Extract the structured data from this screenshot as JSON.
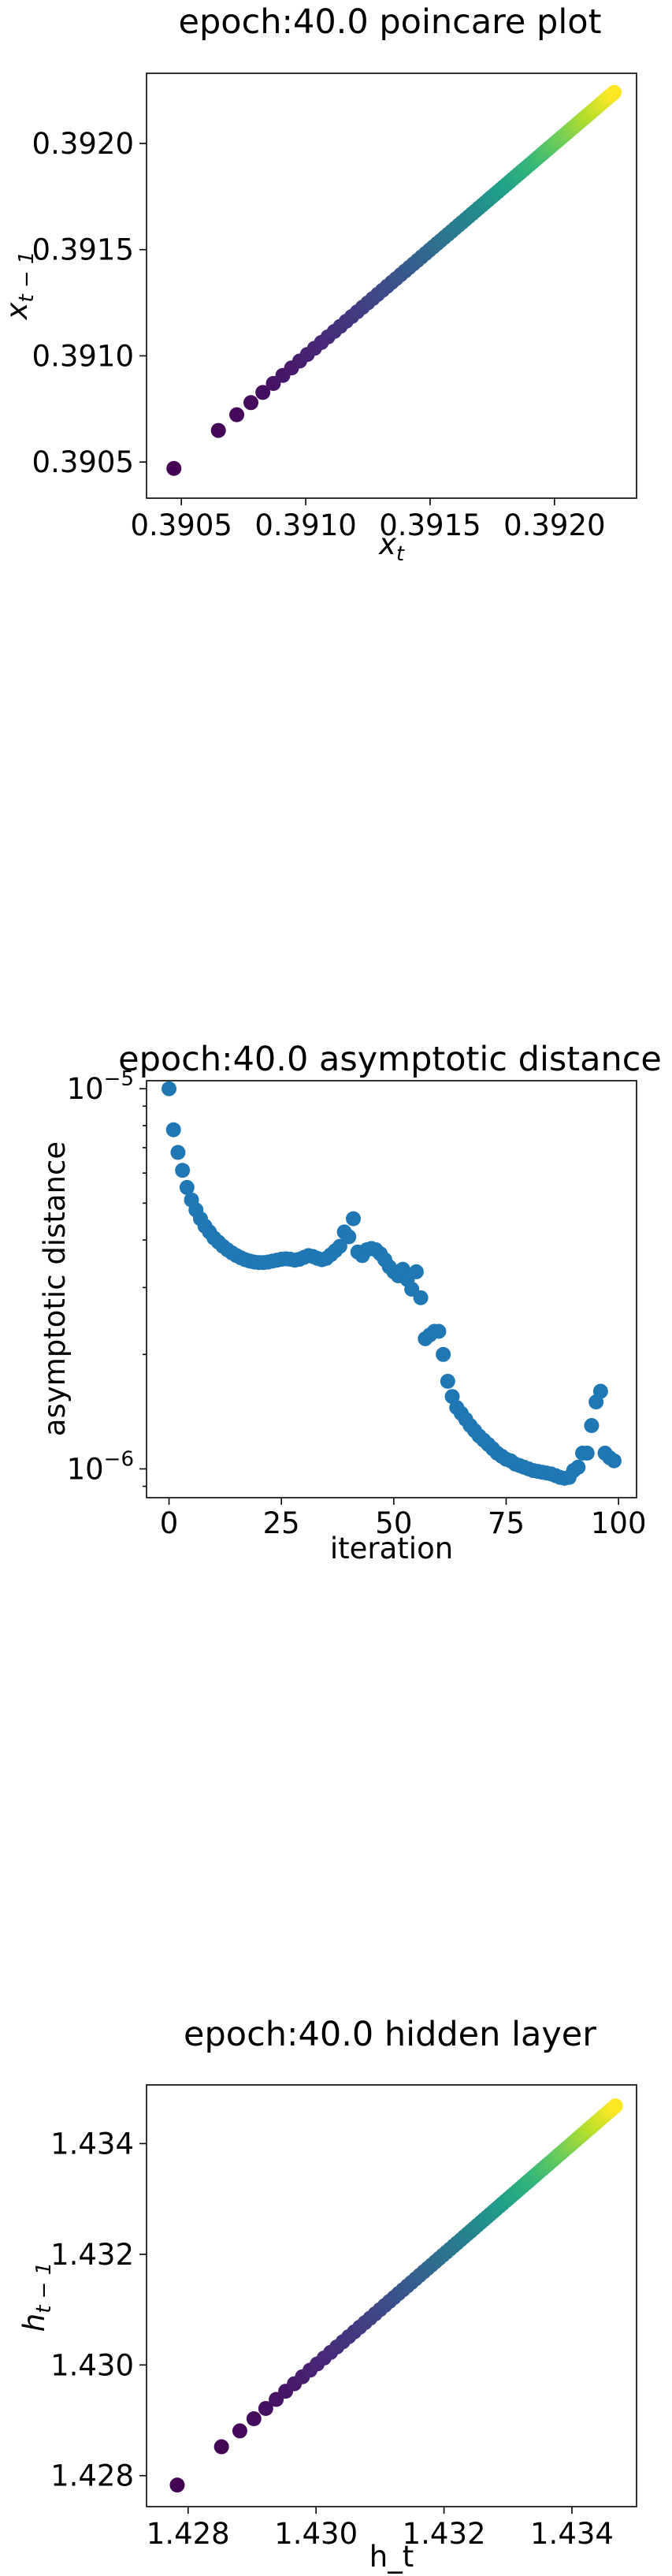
{
  "chart_data": [
    {
      "type": "scatter",
      "title": "epoch:40.0 poincare plot",
      "xlabel": "x_t",
      "ylabel": "x_{t-1}",
      "xlim": [
        0.39036,
        0.39233
      ],
      "ylim": [
        0.39033,
        0.39233
      ],
      "xticks": [
        0.3905,
        0.391,
        0.3915,
        0.392
      ],
      "xtick_labels": [
        "0.3905",
        "0.3910",
        "0.3915",
        "0.3920"
      ],
      "yticks": [
        0.3905,
        0.391,
        0.3915,
        0.392
      ],
      "ytick_labels": [
        "0.3905",
        "0.3910",
        "0.3915",
        "0.3920"
      ],
      "start": 0.39047,
      "end": 0.39224,
      "n_points": 99,
      "colormap": "viridis",
      "grid": false
    },
    {
      "type": "scatter",
      "title": "epoch:40.0 asymptotic distance",
      "xlabel": "iteration",
      "ylabel": "asymptotic distance",
      "yscale": "log",
      "xlim": [
        -5,
        104
      ],
      "ylim": [
        8.4e-07,
        1.05e-05
      ],
      "xticks": [
        0,
        25,
        50,
        75,
        100
      ],
      "xtick_labels": [
        "0",
        "25",
        "50",
        "75",
        "100"
      ],
      "yticks": [
        1e-06,
        1e-05
      ],
      "ytick_base": "10",
      "ytick_exponents": [
        "−6",
        "−5"
      ],
      "color": "#1f77b4",
      "grid": false,
      "x": [
        0,
        1,
        2,
        3,
        4,
        5,
        6,
        7,
        8,
        9,
        10,
        11,
        12,
        13,
        14,
        15,
        16,
        17,
        18,
        19,
        20,
        21,
        22,
        23,
        24,
        25,
        26,
        27,
        28,
        29,
        30,
        31,
        32,
        33,
        34,
        35,
        36,
        37,
        38,
        39,
        40,
        41,
        42,
        43,
        44,
        45,
        46,
        47,
        48,
        49,
        50,
        51,
        52,
        53,
        54,
        55,
        56,
        57,
        58,
        59,
        60,
        61,
        62,
        63,
        64,
        65,
        66,
        67,
        68,
        69,
        70,
        71,
        72,
        73,
        74,
        75,
        76,
        77,
        78,
        79,
        80,
        81,
        82,
        83,
        84,
        85,
        86,
        87,
        88,
        89,
        90,
        91,
        92,
        93,
        94,
        95,
        96,
        97,
        98,
        99
      ],
      "y": [
        1e-05,
        7.8e-06,
        6.8e-06,
        6.1e-06,
        5.5e-06,
        5.1e-06,
        4.8e-06,
        4.55e-06,
        4.35e-06,
        4.2e-06,
        4.05e-06,
        3.95e-06,
        3.85e-06,
        3.77e-06,
        3.7e-06,
        3.64e-06,
        3.59e-06,
        3.55e-06,
        3.52e-06,
        3.5e-06,
        3.49e-06,
        3.49e-06,
        3.5e-06,
        3.52e-06,
        3.54e-06,
        3.56e-06,
        3.57e-06,
        3.56e-06,
        3.54e-06,
        3.56e-06,
        3.6e-06,
        3.64e-06,
        3.62e-06,
        3.58e-06,
        3.55e-06,
        3.58e-06,
        3.66e-06,
        3.75e-06,
        3.85e-06,
        4.2e-06,
        4.08e-06,
        4.55e-06,
        3.72e-06,
        3.64e-06,
        3.77e-06,
        3.8e-06,
        3.77e-06,
        3.68e-06,
        3.55e-06,
        3.4e-06,
        3.3e-06,
        3.22e-06,
        3.35e-06,
        3.15e-06,
        2.97e-06,
        3.3e-06,
        2.82e-06,
        2.2e-06,
        2.25e-06,
        2.3e-06,
        2.3e-06,
        2e-06,
        1.7e-06,
        1.55e-06,
        1.45e-06,
        1.4e-06,
        1.35e-06,
        1.3e-06,
        1.26e-06,
        1.22e-06,
        1.19e-06,
        1.16e-06,
        1.13e-06,
        1.1e-06,
        1.08e-06,
        1.06e-06,
        1.05e-06,
        1.03e-06,
        1.02e-06,
        1.01e-06,
        1e-06,
        9.9e-07,
        9.85e-07,
        9.8e-07,
        9.75e-07,
        9.7e-07,
        9.6e-07,
        9.5e-07,
        9.45e-07,
        9.5e-07,
        9.9e-07,
        1.01e-06,
        1.1e-06,
        1.1e-06,
        1.3e-06,
        1.5e-06,
        1.6e-06,
        1.1e-06,
        1.07e-06,
        1.05e-06
      ]
    },
    {
      "type": "scatter",
      "title": "epoch:40.0 hidden layer",
      "xlabel": "h_t",
      "ylabel": "h_{t-1}",
      "xlim": [
        1.42735,
        1.43501
      ],
      "ylim": [
        1.42744,
        1.43506
      ],
      "xticks": [
        1.428,
        1.43,
        1.432,
        1.434
      ],
      "xtick_labels": [
        "1.428",
        "1.430",
        "1.432",
        "1.434"
      ],
      "yticks": [
        1.428,
        1.43,
        1.432,
        1.434
      ],
      "ytick_labels": [
        "1.428",
        "1.430",
        "1.432",
        "1.434"
      ],
      "start": 1.42783,
      "end": 1.43468,
      "n_points": 99,
      "colormap": "viridis",
      "grid": false
    }
  ]
}
